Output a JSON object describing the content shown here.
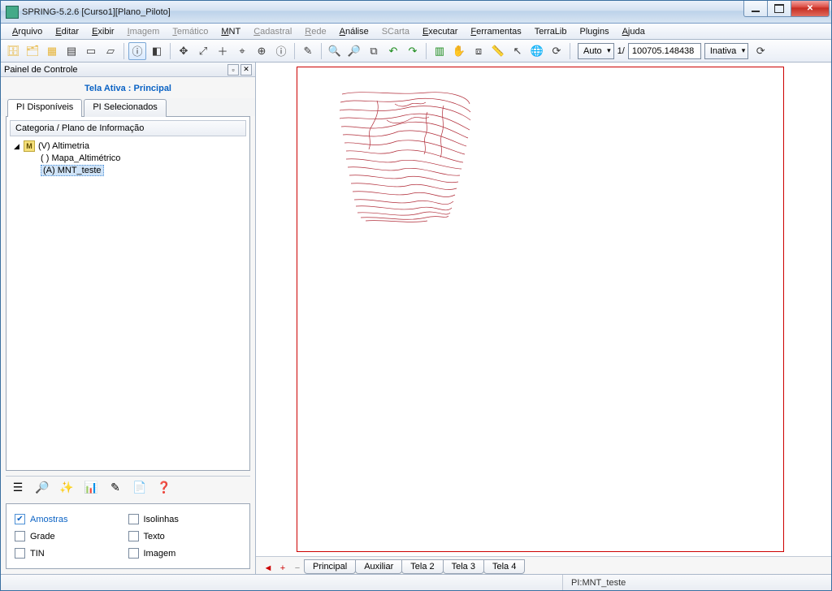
{
  "window": {
    "title": "SPRING-5.2.6 [Curso1][Plano_Piloto]"
  },
  "menu": {
    "items": [
      {
        "label": "Arquivo",
        "ukey": "A",
        "enabled": true
      },
      {
        "label": "Editar",
        "ukey": "E",
        "enabled": true
      },
      {
        "label": "Exibir",
        "ukey": "E",
        "enabled": true
      },
      {
        "label": "Imagem",
        "ukey": "I",
        "enabled": false
      },
      {
        "label": "Temático",
        "ukey": "T",
        "enabled": false
      },
      {
        "label": "MNT",
        "ukey": "M",
        "enabled": true
      },
      {
        "label": "Cadastral",
        "ukey": "C",
        "enabled": false
      },
      {
        "label": "Rede",
        "ukey": "R",
        "enabled": false
      },
      {
        "label": "Análise",
        "ukey": "A",
        "enabled": true
      },
      {
        "label": "SCarta",
        "ukey": "",
        "enabled": false
      },
      {
        "label": "Executar",
        "ukey": "E",
        "enabled": true
      },
      {
        "label": "Ferramentas",
        "ukey": "F",
        "enabled": true
      },
      {
        "label": "TerraLib",
        "ukey": "",
        "enabled": true
      },
      {
        "label": "Plugins",
        "ukey": "",
        "enabled": true
      },
      {
        "label": "Ajuda",
        "ukey": "A",
        "enabled": true
      }
    ]
  },
  "toolbar": {
    "scale_mode": "Auto",
    "scale_prefix": "1/",
    "scale_value": "100705.148438",
    "status_select": "Inativa",
    "icons": [
      "db",
      "layers",
      "grid",
      "swatch",
      "window",
      "page",
      "info-cursor",
      "panel",
      "pan",
      "zoom-fit",
      "plus",
      "recenter",
      "target",
      "info",
      "pencil",
      "zoom-in",
      "zoom-out",
      "zoom-win",
      "undo",
      "redo",
      "table-go",
      "hand",
      "layer-go",
      "ruler",
      "pointer",
      "world",
      "refresh"
    ],
    "colors": {
      "db": "#e7b53a",
      "accent": "#0a62c4"
    }
  },
  "panel": {
    "title": "Painel de Controle",
    "tela_prefix": "Tela Ativa : ",
    "tela_value": "Principal",
    "tabs": {
      "available": "PI Disponíveis",
      "selected": "PI Selecionados",
      "active": 0
    },
    "tree_header": "Categoria / Plano de Informação",
    "tree": {
      "root": {
        "label": "(V) Altimetria",
        "icon_letter": "M"
      },
      "children": [
        {
          "label": "( ) Mapa_Altimétrico",
          "selected": false
        },
        {
          "label": "(A) MNT_teste",
          "selected": true
        }
      ]
    },
    "sidetools": [
      "list",
      "table-search",
      "sparkle",
      "chart",
      "pencil",
      "doc",
      "help"
    ],
    "layers": {
      "row1": [
        {
          "label": "Amostras",
          "checked": true,
          "color": "#0a62c4"
        },
        {
          "label": "Isolinhas",
          "checked": false
        }
      ],
      "row2": [
        {
          "label": "Grade",
          "checked": false
        },
        {
          "label": "Texto",
          "checked": false
        }
      ],
      "row3": [
        {
          "label": "TIN",
          "checked": false
        },
        {
          "label": "Imagem",
          "checked": false
        }
      ]
    }
  },
  "canvas": {
    "border_color": "#c00000",
    "contour_color": "#b02a37",
    "contour_paths": [
      "M5,8 C30,2 70,10 110,6 C140,4 160,12 162,20",
      "M3,18 C25,12 55,22 95,14 C130,10 158,24 163,30",
      "M2,28 C22,24 48,34 88,24 C128,18 156,34 163,40",
      "M2,38 C20,34 45,44 82,34 C122,26 150,46 162,52",
      "M4,48 C22,46 42,56 78,44 C118,36 148,58 160,62",
      "M6,58 C24,56 44,66 74,54 C112,48 144,68 158,72",
      "M8,68 C26,66 44,76 72,66 C106,60 140,78 156,82",
      "M10,78 C30,76 50,86 72,78 C104,72 136,90 154,92",
      "M10,88 C34,86 56,96 76,90 C102,86 134,100 152,100",
      "M12,98 C36,96 60,106 80,100 C104,96 130,110 150,108",
      "M14,108 C40,106 64,116 84,110 C108,106 128,120 148,116",
      "M16,118 C42,116 68,126 88,120 C110,116 128,130 146,124",
      "M18,128 C44,126 70,136 92,130 C114,126 128,140 144,132",
      "M20,138 C46,136 72,146 96,140 C118,136 130,150 142,140",
      "M22,146 C48,144 74,154 100,148 C120,144 132,156 140,148",
      "M24,154 C50,152 78,162 104,154 C122,150 132,160 138,154",
      "M28,160 C54,158 82,166 108,160 C124,156 132,162 136,158",
      "M34,164 C58,162 86,168 110,164",
      "M70,20 C76,24 82,24 90,20 C96,18 102,22 108,18",
      "M60,40 C68,46 80,44 90,38 C98,34 106,40 112,36",
      "M48,16 C52,28 46,40 40,50 C36,58 42,66 38,76",
      "M110,30 C106,40 112,48 108,58 C104,66 110,74 106,82",
      "M130,22 C126,34 132,44 128,56 C124,66 130,76 126,86"
    ]
  },
  "viewtabs": {
    "buttons": [
      "back",
      "add",
      "minus"
    ],
    "tabs": [
      "Principal",
      "Auxiliar",
      "Tela 2",
      "Tela 3",
      "Tela 4"
    ],
    "active": 0
  },
  "statusbar": {
    "pi_label": "PI: ",
    "pi_value": "MNT_teste"
  },
  "colors": {
    "accent": "#0a62c4",
    "selection_bg": "#cfe3f7",
    "canvas_border": "#c00000",
    "contour": "#b02a37"
  }
}
